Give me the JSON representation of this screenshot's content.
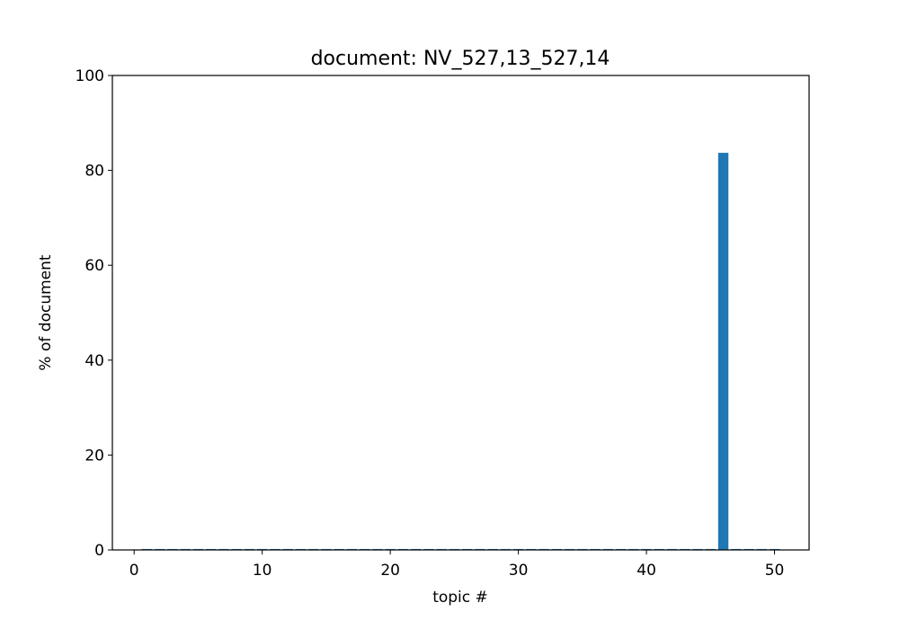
{
  "chart_data": {
    "type": "bar",
    "title": "document: NV_527,13_527,14",
    "xlabel": "topic #",
    "ylabel": "% of document",
    "xlim": [
      -1.7,
      52.7
    ],
    "ylim": [
      0,
      100
    ],
    "xticks": [
      0,
      10,
      20,
      30,
      40,
      50
    ],
    "yticks": [
      0,
      20,
      40,
      60,
      80,
      100
    ],
    "bar_color": "#1f77b4",
    "grid": false,
    "x": [
      1,
      2,
      3,
      4,
      5,
      6,
      7,
      8,
      9,
      10,
      11,
      12,
      13,
      14,
      15,
      16,
      17,
      18,
      19,
      20,
      21,
      22,
      23,
      24,
      25,
      26,
      27,
      28,
      29,
      30,
      31,
      32,
      33,
      34,
      35,
      36,
      37,
      38,
      39,
      40,
      41,
      42,
      43,
      44,
      45,
      46,
      47,
      48,
      49,
      50
    ],
    "values": [
      0.2,
      0.2,
      0.2,
      0.2,
      0.2,
      0.2,
      0.2,
      0.2,
      0.2,
      0.2,
      0.2,
      0.2,
      0.2,
      0.2,
      0.2,
      0.2,
      0.2,
      0.2,
      0.2,
      0.2,
      0.2,
      0.2,
      0.2,
      0.2,
      0.2,
      0.2,
      0.2,
      0.2,
      0.2,
      0.2,
      0.2,
      0.2,
      0.2,
      0.2,
      0.2,
      0.2,
      0.2,
      0.2,
      0.2,
      0.2,
      0.2,
      0.2,
      0.2,
      0.2,
      0.2,
      83.7,
      0.2,
      0.2,
      0.2,
      0.2
    ]
  }
}
